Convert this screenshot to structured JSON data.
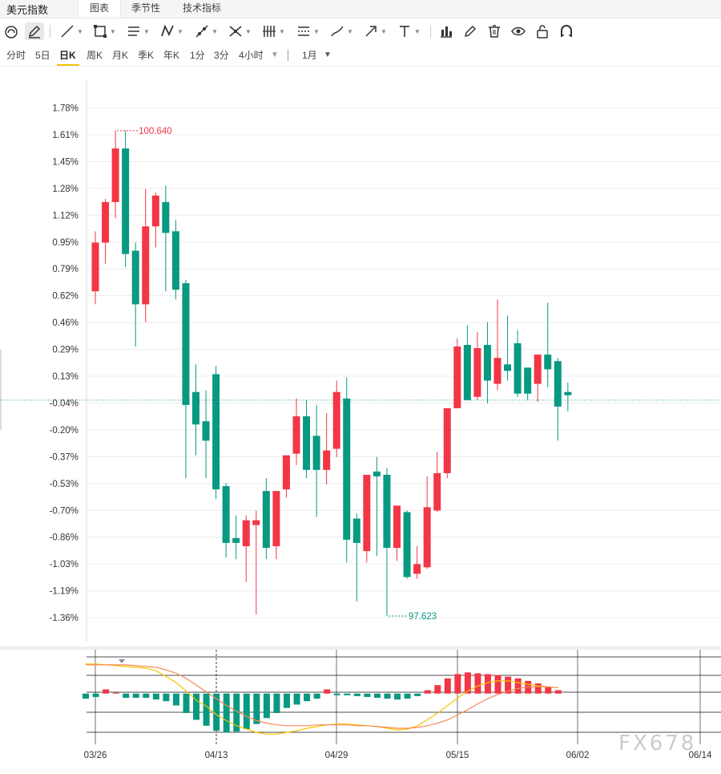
{
  "app": {
    "title": "美元指数"
  },
  "tabs": [
    {
      "label": "图表",
      "active": true
    },
    {
      "label": "季节性",
      "active": false
    },
    {
      "label": "技术指标",
      "active": false
    }
  ],
  "toolbar": {
    "icons": [
      "magnet-icon",
      "pencil-icon",
      "line-icon",
      "rectangle-icon",
      "parallel-lines-icon",
      "pattern-icon",
      "ray-icon",
      "cross-lines-icon",
      "fibonacci-icon",
      "channel-icon",
      "brush-icon",
      "arrow-icon",
      "text-icon",
      "bar-chart-icon",
      "edit-icon",
      "trash-icon",
      "eye-icon",
      "unlock-icon",
      "magnet-u-icon"
    ]
  },
  "periods": [
    {
      "label": "分时"
    },
    {
      "label": "5日"
    },
    {
      "label": "日K",
      "active": true
    },
    {
      "label": "周K"
    },
    {
      "label": "月K"
    },
    {
      "label": "季K"
    },
    {
      "label": "年K"
    },
    {
      "label": "1分"
    },
    {
      "label": "3分"
    },
    {
      "label": "4小时"
    }
  ],
  "range_select": {
    "value": "1月"
  },
  "colors": {
    "up": "#f23645",
    "down": "#089981",
    "ma_fast": "#f5c400",
    "ma_slow": "#f58a55"
  },
  "chart_data": {
    "type": "candlestick",
    "y_axis_ticks": [
      "1.78%",
      "1.61%",
      "1.45%",
      "1.28%",
      "1.12%",
      "0.95%",
      "0.79%",
      "0.62%",
      "0.46%",
      "0.29%",
      "0.13%",
      "-0.04%",
      "-0.20%",
      "-0.37%",
      "-0.53%",
      "-0.70%",
      "-0.86%",
      "-1.03%",
      "-1.19%",
      "-1.36%"
    ],
    "ylim": [
      -1.44,
      1.88
    ],
    "x_axis_ticks": [
      "03/26",
      "04/13",
      "04/29",
      "05/15",
      "06/02",
      "06/14"
    ],
    "high_label": "100.640",
    "low_label": "97.623",
    "baseline": -0.02,
    "candles": [
      [
        0.65,
        0.95,
        1.02,
        0.57
      ],
      [
        0.95,
        1.2,
        1.22,
        0.82
      ],
      [
        1.2,
        1.53,
        1.64,
        1.1
      ],
      [
        1.53,
        0.88,
        1.64,
        0.8
      ],
      [
        0.9,
        0.57,
        0.95,
        0.31
      ],
      [
        0.57,
        1.05,
        1.28,
        0.46
      ],
      [
        1.05,
        1.24,
        1.26,
        0.92
      ],
      [
        1.2,
        1.01,
        1.3,
        0.65
      ],
      [
        1.02,
        0.66,
        1.09,
        0.6
      ],
      [
        0.7,
        -0.05,
        0.72,
        -0.5
      ],
      [
        0.03,
        -0.17,
        0.2,
        -0.36
      ],
      [
        -0.15,
        -0.27,
        0.04,
        -0.5
      ],
      [
        0.14,
        -0.57,
        0.19,
        -0.63
      ],
      [
        -0.55,
        -0.9,
        -0.53,
        -0.99
      ],
      [
        -0.87,
        -0.9,
        -0.73,
        -1.0
      ],
      [
        -0.92,
        -0.76,
        -0.73,
        -1.14
      ],
      [
        -0.79,
        -0.76,
        -0.7,
        -1.34
      ],
      [
        -0.58,
        -0.93,
        -0.5,
        -1.0
      ],
      [
        -0.92,
        -0.58,
        -0.68,
        -1.0
      ],
      [
        -0.57,
        -0.36,
        -0.55,
        -0.62
      ],
      [
        -0.35,
        -0.12,
        -0.01,
        -0.42
      ],
      [
        -0.12,
        -0.45,
        -0.02,
        -0.5
      ],
      [
        -0.24,
        -0.45,
        -0.05,
        -0.74
      ],
      [
        -0.45,
        -0.33,
        -0.1,
        -0.54
      ],
      [
        -0.32,
        0.03,
        0.1,
        -0.37
      ],
      [
        -0.01,
        -0.88,
        0.12,
        -1.02
      ],
      [
        -0.75,
        -0.9,
        -0.72,
        -1.26
      ],
      [
        -0.95,
        -0.48,
        -0.48,
        -1.02
      ],
      [
        -0.46,
        -0.49,
        -0.37,
        -0.98
      ],
      [
        -0.48,
        -0.93,
        -0.44,
        -1.35
      ],
      [
        -0.93,
        -0.67,
        -0.67,
        -1.01
      ],
      [
        -0.71,
        -1.11,
        -0.7,
        -1.12
      ],
      [
        -1.09,
        -1.03,
        -0.92,
        -1.12
      ],
      [
        -1.05,
        -0.68,
        -0.49,
        -1.06
      ],
      [
        -0.7,
        -0.47,
        -0.34,
        -0.71
      ],
      [
        -0.47,
        -0.07,
        -0.07,
        -0.5
      ],
      [
        -0.07,
        0.31,
        0.36,
        -0.07
      ],
      [
        0.32,
        -0.02,
        0.44,
        -0.02
      ],
      [
        0.0,
        0.3,
        0.4,
        -0.02
      ],
      [
        0.32,
        0.1,
        0.46,
        -0.04
      ],
      [
        0.08,
        0.24,
        0.6,
        0.04
      ],
      [
        0.2,
        0.16,
        0.5,
        0.1
      ],
      [
        0.33,
        0.02,
        0.41,
        0.0
      ],
      [
        0.18,
        0.02,
        0.18,
        -0.02
      ],
      [
        0.08,
        0.26,
        0.26,
        -0.03
      ],
      [
        0.26,
        0.17,
        0.58,
        0.06
      ],
      [
        0.22,
        -0.06,
        0.24,
        -0.27
      ],
      [
        0.03,
        0.01,
        0.09,
        -0.09
      ]
    ],
    "macd": {
      "ylim": [
        -6,
        5
      ],
      "hist": [
        -0.6,
        -0.4,
        0.5,
        0.1,
        -0.5,
        -0.5,
        -0.5,
        -0.7,
        -0.9,
        -1.4,
        -2.3,
        -3.1,
        -3.8,
        -4.4,
        -4.6,
        -4.5,
        -4.2,
        -3.6,
        -2.9,
        -2.3,
        -1.7,
        -1.3,
        -0.9,
        -0.6,
        0.5,
        -0.2,
        -0.2,
        -0.3,
        -0.4,
        -0.5,
        -0.6,
        -0.7,
        -0.6,
        -0.3,
        0.4,
        1.0,
        1.8,
        2.3,
        2.5,
        2.4,
        2.3,
        2.2,
        2.0,
        1.8,
        1.5,
        1.2,
        0.8,
        0.4
      ],
      "dif": [
        3.5,
        3.5,
        3.4,
        3.3,
        3.2,
        3.1,
        3.0,
        2.7,
        2.0,
        1.3,
        0.3,
        -0.8,
        -1.5,
        -2.5,
        -3.2,
        -3.8,
        -4.2,
        -4.6,
        -4.8,
        -4.8,
        -4.6,
        -4.4,
        -4.1,
        -3.9,
        -3.7,
        -3.6,
        -3.6,
        -3.7,
        -3.8,
        -3.9,
        -4.1,
        -4.3,
        -4.2,
        -3.8,
        -3.1,
        -2.3,
        -1.4,
        -0.5,
        0.3,
        0.9,
        1.3,
        1.5,
        1.5,
        1.3,
        1.1,
        0.9,
        0.8,
        0.7
      ],
      "dea": [
        3.4,
        3.4,
        3.4,
        3.4,
        3.4,
        3.3,
        3.2,
        3.1,
        2.8,
        2.4,
        1.8,
        1.0,
        0.2,
        -0.6,
        -1.4,
        -2.1,
        -2.7,
        -3.2,
        -3.5,
        -3.7,
        -3.8,
        -3.8,
        -3.8,
        -3.7,
        -3.7,
        -3.7,
        -3.7,
        -3.8,
        -3.8,
        -3.9,
        -4.0,
        -4.1,
        -4.1,
        -4.0,
        -3.8,
        -3.5,
        -3.1,
        -2.5,
        -1.9,
        -1.2,
        -0.6,
        -0.1,
        0.3,
        0.6,
        0.8,
        0.8,
        0.8,
        0.7
      ]
    }
  }
}
